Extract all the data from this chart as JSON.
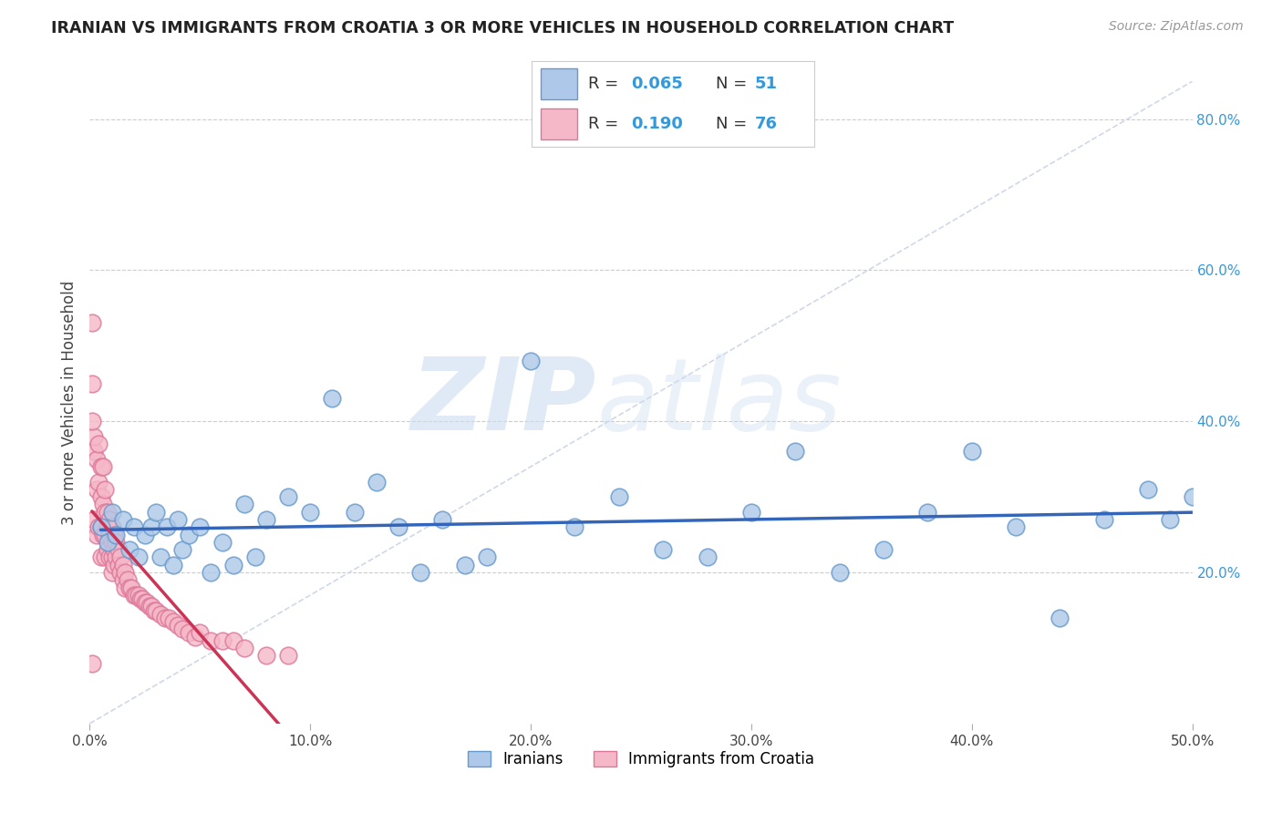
{
  "title": "IRANIAN VS IMMIGRANTS FROM CROATIA 3 OR MORE VEHICLES IN HOUSEHOLD CORRELATION CHART",
  "source": "Source: ZipAtlas.com",
  "ylabel": "3 or more Vehicles in Household",
  "xlim": [
    0.0,
    0.5
  ],
  "ylim": [
    0.0,
    0.85
  ],
  "xticks": [
    0.0,
    0.1,
    0.2,
    0.3,
    0.4,
    0.5
  ],
  "xticklabels": [
    "0.0%",
    "10.0%",
    "20.0%",
    "30.0%",
    "40.0%",
    "50.0%"
  ],
  "yticks_right": [
    0.2,
    0.4,
    0.6,
    0.8
  ],
  "ytick_right_labels": [
    "20.0%",
    "40.0%",
    "60.0%",
    "80.0%"
  ],
  "background_color": "#ffffff",
  "grid_color": "#cccccc",
  "diagonal_line_color": "#d0d8e8",
  "iranians_color": "#adc8e8",
  "iranians_edge_color": "#6699cc",
  "croatia_color": "#f5b8c8",
  "croatia_edge_color": "#dd7799",
  "iranians_R": 0.065,
  "iranians_N": 51,
  "croatia_R": 0.19,
  "croatia_N": 76,
  "iranians_line_color": "#3366bb",
  "croatia_line_color": "#cc3355",
  "legend_label_iranians": "Iranians",
  "legend_label_croatia": "Immigrants from Croatia",
  "iranians_x": [
    0.005,
    0.008,
    0.01,
    0.012,
    0.015,
    0.018,
    0.02,
    0.022,
    0.025,
    0.028,
    0.03,
    0.032,
    0.035,
    0.038,
    0.04,
    0.042,
    0.045,
    0.05,
    0.055,
    0.06,
    0.065,
    0.07,
    0.075,
    0.08,
    0.09,
    0.1,
    0.11,
    0.12,
    0.13,
    0.14,
    0.15,
    0.16,
    0.17,
    0.18,
    0.2,
    0.22,
    0.24,
    0.26,
    0.28,
    0.3,
    0.32,
    0.34,
    0.36,
    0.38,
    0.4,
    0.42,
    0.44,
    0.46,
    0.48,
    0.49,
    0.5
  ],
  "iranians_y": [
    0.26,
    0.24,
    0.28,
    0.25,
    0.27,
    0.23,
    0.26,
    0.22,
    0.25,
    0.26,
    0.28,
    0.22,
    0.26,
    0.21,
    0.27,
    0.23,
    0.25,
    0.26,
    0.2,
    0.24,
    0.21,
    0.29,
    0.22,
    0.27,
    0.3,
    0.28,
    0.43,
    0.28,
    0.32,
    0.26,
    0.2,
    0.27,
    0.21,
    0.22,
    0.48,
    0.26,
    0.3,
    0.23,
    0.22,
    0.28,
    0.36,
    0.2,
    0.23,
    0.28,
    0.36,
    0.26,
    0.14,
    0.27,
    0.31,
    0.27,
    0.3
  ],
  "croatia_x": [
    0.001,
    0.001,
    0.002,
    0.002,
    0.002,
    0.003,
    0.003,
    0.003,
    0.004,
    0.004,
    0.004,
    0.005,
    0.005,
    0.005,
    0.005,
    0.006,
    0.006,
    0.006,
    0.007,
    0.007,
    0.007,
    0.007,
    0.008,
    0.008,
    0.008,
    0.009,
    0.009,
    0.009,
    0.01,
    0.01,
    0.01,
    0.01,
    0.011,
    0.011,
    0.011,
    0.012,
    0.012,
    0.013,
    0.013,
    0.014,
    0.014,
    0.015,
    0.015,
    0.016,
    0.016,
    0.017,
    0.018,
    0.019,
    0.02,
    0.021,
    0.022,
    0.023,
    0.024,
    0.025,
    0.026,
    0.027,
    0.028,
    0.029,
    0.03,
    0.032,
    0.034,
    0.036,
    0.038,
    0.04,
    0.042,
    0.045,
    0.048,
    0.05,
    0.055,
    0.06,
    0.065,
    0.07,
    0.08,
    0.09,
    0.001,
    0.001
  ],
  "croatia_y": [
    0.53,
    0.08,
    0.36,
    0.38,
    0.27,
    0.35,
    0.31,
    0.25,
    0.37,
    0.32,
    0.26,
    0.34,
    0.3,
    0.26,
    0.22,
    0.34,
    0.29,
    0.25,
    0.31,
    0.28,
    0.25,
    0.22,
    0.28,
    0.26,
    0.23,
    0.27,
    0.25,
    0.22,
    0.26,
    0.24,
    0.22,
    0.2,
    0.25,
    0.23,
    0.21,
    0.24,
    0.22,
    0.23,
    0.21,
    0.22,
    0.2,
    0.21,
    0.19,
    0.2,
    0.18,
    0.19,
    0.18,
    0.18,
    0.17,
    0.17,
    0.17,
    0.165,
    0.165,
    0.16,
    0.16,
    0.155,
    0.155,
    0.15,
    0.15,
    0.145,
    0.14,
    0.14,
    0.135,
    0.13,
    0.125,
    0.12,
    0.115,
    0.12,
    0.11,
    0.11,
    0.11,
    0.1,
    0.09,
    0.09,
    0.45,
    0.4
  ]
}
